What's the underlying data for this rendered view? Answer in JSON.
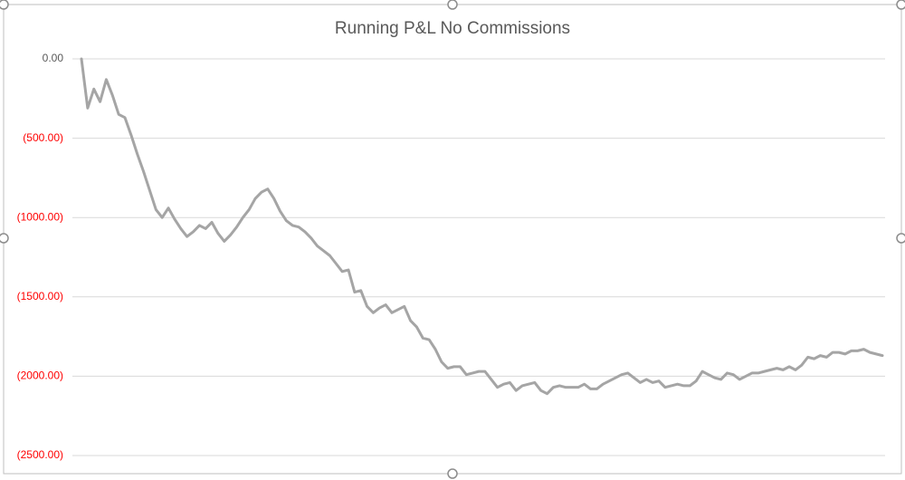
{
  "chart_data": {
    "type": "line",
    "title": "Running P&L No Commissions",
    "series": [
      {
        "color": "#a5a5a5",
        "values": [
          0,
          -310,
          -190,
          -270,
          -130,
          -230,
          -350,
          -370,
          -480,
          -600,
          -710,
          -830,
          -950,
          -1000,
          -940,
          -1010,
          -1070,
          -1120,
          -1090,
          -1050,
          -1070,
          -1030,
          -1100,
          -1150,
          -1110,
          -1060,
          -1000,
          -950,
          -880,
          -840,
          -820,
          -880,
          -960,
          -1020,
          -1050,
          -1060,
          -1090,
          -1130,
          -1180,
          -1210,
          -1240,
          -1290,
          -1340,
          -1330,
          -1470,
          -1460,
          -1560,
          -1600,
          -1570,
          -1550,
          -1600,
          -1580,
          -1560,
          -1650,
          -1690,
          -1760,
          -1770,
          -1830,
          -1910,
          -1950,
          -1940,
          -1940,
          -1990,
          -1980,
          -1970,
          -1970,
          -2020,
          -2070,
          -2050,
          -2040,
          -2090,
          -2060,
          -2050,
          -2040,
          -2090,
          -2110,
          -2070,
          -2060,
          -2070,
          -2070,
          -2070,
          -2050,
          -2080,
          -2080,
          -2050,
          -2030,
          -2010,
          -1990,
          -1980,
          -2010,
          -2040,
          -2020,
          -2040,
          -2030,
          -2070,
          -2060,
          -2050,
          -2060,
          -2060,
          -2030,
          -1970,
          -1990,
          -2010,
          -2020,
          -1980,
          -1990,
          -2020,
          -2000,
          -1980,
          -1980,
          -1970,
          -1960,
          -1950,
          -1960,
          -1940,
          -1960,
          -1930,
          -1880,
          -1890,
          -1870,
          -1880,
          -1850,
          -1850,
          -1860,
          -1840,
          -1840,
          -1830,
          -1850,
          -1860,
          -1870
        ]
      }
    ],
    "ylim": [
      -2500,
      0
    ],
    "yticks": [
      {
        "value": 0,
        "label": "0.00"
      },
      {
        "value": -500,
        "label": "(500.00)"
      },
      {
        "value": -1000,
        "label": "(1000.00)"
      },
      {
        "value": -1500,
        "label": "(1500.00)"
      },
      {
        "value": -2000,
        "label": "(2000.00)"
      },
      {
        "value": -2500,
        "label": "(2500.00)"
      }
    ],
    "grid": true,
    "tick_label_color": "#595959",
    "negative_tick_label_color": "#ff0000"
  }
}
